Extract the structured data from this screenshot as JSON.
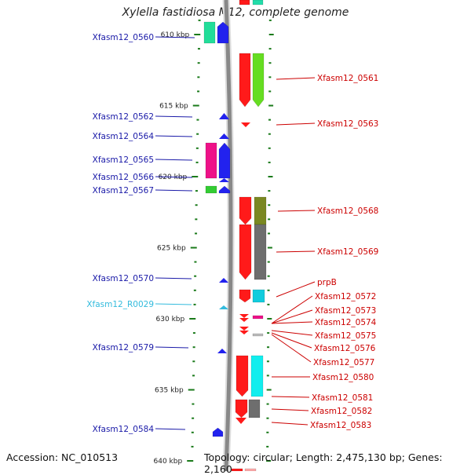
{
  "title": "Xylella fastidiosa M12, complete genome",
  "accession_text": "Accession: NC_010513",
  "topology_text": "Topology: circular; Length: 2,475,130 bp; Genes: 2,160",
  "colors": {
    "left_labels": "#1a1aa8",
    "right_labels": "#cc0000",
    "rna_label": "#33bbdd",
    "ruler_ticks": "#1a7a1a",
    "backbone": "#808080"
  },
  "ruler": {
    "labels": [
      "610 kbp",
      "615 kbp",
      "620 kbp",
      "625 kbp",
      "630 kbp",
      "635 kbp",
      "640 kbp"
    ],
    "kbp_values": [
      610,
      615,
      620,
      625,
      630,
      635,
      640
    ]
  },
  "genes_left": [
    {
      "label": "Xfasm12_0560",
      "type": "CDS"
    },
    {
      "label": "Xfasm12_0562",
      "type": "CDS"
    },
    {
      "label": "Xfasm12_0564",
      "type": "CDS"
    },
    {
      "label": "Xfasm12_0565",
      "type": "CDS"
    },
    {
      "label": "Xfasm12_0566",
      "type": "CDS"
    },
    {
      "label": "Xfasm12_0567",
      "type": "CDS"
    },
    {
      "label": "Xfasm12_0570",
      "type": "CDS"
    },
    {
      "label": "Xfasm12_R0029",
      "type": "RNA"
    },
    {
      "label": "Xfasm12_0579",
      "type": "CDS"
    },
    {
      "label": "Xfasm12_0584",
      "type": "CDS"
    }
  ],
  "genes_right": [
    {
      "label": "Xfasm12_0561"
    },
    {
      "label": "Xfasm12_0563"
    },
    {
      "label": "Xfasm12_0568"
    },
    {
      "label": "Xfasm12_0569"
    },
    {
      "label": "prpB"
    },
    {
      "label": "Xfasm12_0572"
    },
    {
      "label": "Xfasm12_0573"
    },
    {
      "label": "Xfasm12_0574"
    },
    {
      "label": "Xfasm12_0575"
    },
    {
      "label": "Xfasm12_0576"
    },
    {
      "label": "Xfasm12_0577"
    },
    {
      "label": "Xfasm12_0580"
    },
    {
      "label": "Xfasm12_0581"
    },
    {
      "label": "Xfasm12_0582"
    },
    {
      "label": "Xfasm12_0583"
    }
  ]
}
